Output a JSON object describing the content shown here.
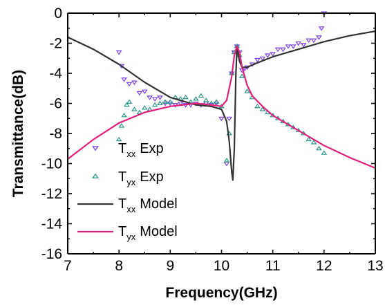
{
  "chart_data": {
    "type": "line",
    "xlabel": "Frequency(GHz)",
    "ylabel": "Transmittance(dB)",
    "xlim": [
      7,
      13
    ],
    "ylim": [
      -16,
      0
    ],
    "x_ticks": [
      7,
      8,
      9,
      10,
      11,
      12,
      13
    ],
    "y_ticks": [
      0,
      -2,
      -4,
      -6,
      -8,
      -10,
      -12,
      -14,
      -16
    ],
    "grid": false,
    "legend_position": "lower-left",
    "series": [
      {
        "name": "Exp",
        "legend_main": "T",
        "legend_sub": "xx",
        "legend_suffix": "Exp",
        "style": "markers",
        "marker": "triangle-down",
        "color": "#7b3fe4",
        "x": [
          8.0,
          8.05,
          8.1,
          8.2,
          8.3,
          8.4,
          8.5,
          8.6,
          8.7,
          8.8,
          8.9,
          9.0,
          9.1,
          9.2,
          9.3,
          9.4,
          9.5,
          9.6,
          9.7,
          9.8,
          9.9,
          10.0,
          10.1,
          10.15,
          10.2,
          10.25,
          10.3,
          10.35,
          10.4,
          10.45,
          10.5,
          10.6,
          10.7,
          10.8,
          10.9,
          11.0,
          11.1,
          11.2,
          11.3,
          11.4,
          11.5,
          11.6,
          11.7,
          11.8,
          11.9,
          11.95,
          12.0
        ],
        "y": [
          -2.6,
          -3.5,
          -4.4,
          -4.7,
          -4.6,
          -5.3,
          -5.2,
          -5.6,
          -5.7,
          -5.6,
          -6.0,
          -6.0,
          -6.1,
          -6.0,
          -6.1,
          -6.1,
          -6.0,
          -6.1,
          -6.0,
          -6.1,
          -6.0,
          -7.0,
          -10.0,
          -7.0,
          -4.0,
          -2.6,
          -2.2,
          -2.6,
          -3.8,
          -3.7,
          -3.6,
          -3.4,
          -3.1,
          -3.0,
          -2.8,
          -2.7,
          -2.4,
          -2.4,
          -2.2,
          -2.2,
          -2.0,
          -2.1,
          -1.8,
          -1.8,
          -1.6,
          -1.0,
          0.0
        ]
      },
      {
        "name": "Exp",
        "legend_main": "T",
        "legend_sub": "yx",
        "legend_suffix": "Exp",
        "style": "markers",
        "marker": "triangle-up",
        "color": "#2a9688",
        "x": [
          8.0,
          8.05,
          8.1,
          8.15,
          8.2,
          8.3,
          8.4,
          8.5,
          8.6,
          8.7,
          8.8,
          8.9,
          9.0,
          9.1,
          9.2,
          9.3,
          9.4,
          9.5,
          9.6,
          9.7,
          9.8,
          9.9,
          10.0,
          10.1,
          10.15,
          10.2,
          10.25,
          10.3,
          10.35,
          10.4,
          10.5,
          10.6,
          10.7,
          10.8,
          10.9,
          11.0,
          11.1,
          11.2,
          11.3,
          11.4,
          11.5,
          11.6,
          11.7,
          11.8,
          11.9,
          12.0
        ],
        "y": [
          -8.4,
          -7.5,
          -6.8,
          -6.1,
          -5.9,
          -6.4,
          -6.6,
          -6.3,
          -6.4,
          -6.1,
          -6.0,
          -5.9,
          -5.9,
          -5.6,
          -5.7,
          -5.6,
          -5.9,
          -5.7,
          -5.5,
          -5.8,
          -6.0,
          -5.9,
          -6.2,
          -9.8,
          -8.0,
          -4.0,
          -2.6,
          -2.2,
          -2.8,
          -4.2,
          -5.2,
          -5.6,
          -6.2,
          -6.4,
          -6.6,
          -6.8,
          -7.0,
          -7.2,
          -7.4,
          -7.6,
          -7.8,
          -8.0,
          -8.4,
          -8.6,
          -9.0,
          -9.3
        ]
      },
      {
        "name": "Model",
        "legend_main": "T",
        "legend_sub": "xx",
        "legend_suffix": "Model",
        "style": "line",
        "color": "#333333",
        "x": [
          7.0,
          7.5,
          8.0,
          8.5,
          9.0,
          9.5,
          9.8,
          10.0,
          10.1,
          10.15,
          10.2,
          10.22,
          10.25,
          10.28,
          10.3,
          10.32,
          10.35,
          10.4,
          10.5,
          10.7,
          11.0,
          11.5,
          12.0,
          12.5,
          13.0
        ],
        "y": [
          -1.6,
          -2.4,
          -3.4,
          -4.6,
          -5.6,
          -6.1,
          -6.2,
          -6.4,
          -7.2,
          -8.5,
          -10.6,
          -11.1,
          -9.0,
          -4.0,
          -2.4,
          -2.6,
          -3.2,
          -3.6,
          -3.6,
          -3.3,
          -2.9,
          -2.4,
          -1.9,
          -1.5,
          -1.2
        ]
      },
      {
        "name": "Model",
        "legend_main": "T",
        "legend_sub": "yx",
        "legend_suffix": "Model",
        "style": "line",
        "color": "#e0207a",
        "x": [
          7.0,
          7.5,
          8.0,
          8.5,
          9.0,
          9.5,
          9.8,
          10.0,
          10.1,
          10.2,
          10.25,
          10.3,
          10.35,
          10.4,
          10.5,
          10.6,
          10.8,
          11.0,
          11.5,
          12.0,
          12.5,
          13.0
        ],
        "y": [
          -9.7,
          -8.4,
          -7.3,
          -6.6,
          -6.2,
          -6.0,
          -6.1,
          -6.2,
          -5.8,
          -4.2,
          -2.8,
          -2.2,
          -2.6,
          -3.6,
          -4.8,
          -5.5,
          -6.2,
          -6.8,
          -7.8,
          -8.8,
          -9.6,
          -10.3
        ]
      }
    ]
  }
}
